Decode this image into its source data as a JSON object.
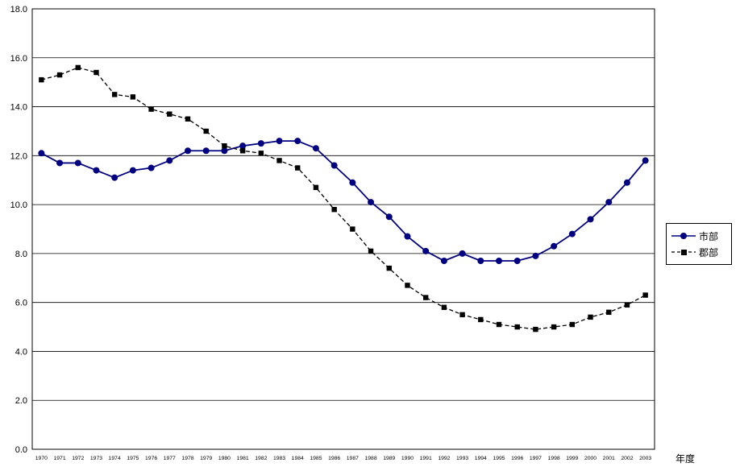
{
  "chart_data": {
    "type": "line",
    "title": "",
    "xlabel": "年度",
    "ylabel": "",
    "ylim": [
      0,
      18
    ],
    "ytick_step": 2,
    "ytick_labels": [
      "0.0",
      "2.0",
      "4.0",
      "6.0",
      "8.0",
      "10.0",
      "12.0",
      "14.0",
      "16.0",
      "18.0"
    ],
    "grid": true,
    "legend_position": "right",
    "x": [
      "1970",
      "1971",
      "1972",
      "1973",
      "1974",
      "1975",
      "1976",
      "1977",
      "1978",
      "1979",
      "1980",
      "1981",
      "1982",
      "1983",
      "1984",
      "1985",
      "1986",
      "1987",
      "1988",
      "1989",
      "1990",
      "1991",
      "1992",
      "1993",
      "1994",
      "1995",
      "1996",
      "1997",
      "1998",
      "1999",
      "2000",
      "2001",
      "2002",
      "2003"
    ],
    "series": [
      {
        "name": "市部",
        "style": "solid",
        "marker": "circle",
        "color": "#000080",
        "values": [
          12.1,
          11.7,
          11.7,
          11.4,
          11.1,
          11.4,
          11.5,
          11.8,
          12.2,
          12.2,
          12.2,
          12.4,
          12.5,
          12.6,
          12.6,
          12.3,
          11.6,
          10.9,
          10.1,
          9.5,
          8.7,
          8.1,
          7.7,
          8.0,
          7.7,
          7.7,
          7.7,
          7.9,
          8.3,
          8.8,
          9.4,
          10.1,
          10.9,
          11.8
        ]
      },
      {
        "name": "郡部",
        "style": "dashed",
        "marker": "square",
        "color": "#000000",
        "values": [
          15.1,
          15.3,
          15.6,
          15.4,
          14.5,
          14.4,
          13.9,
          13.7,
          13.5,
          13.0,
          12.4,
          12.2,
          12.1,
          11.8,
          11.5,
          10.7,
          9.8,
          9.0,
          8.1,
          7.4,
          6.7,
          6.2,
          5.8,
          5.5,
          5.3,
          5.1,
          5.0,
          4.9,
          5.0,
          5.1,
          5.4,
          5.6,
          5.9,
          6.3
        ]
      }
    ]
  }
}
